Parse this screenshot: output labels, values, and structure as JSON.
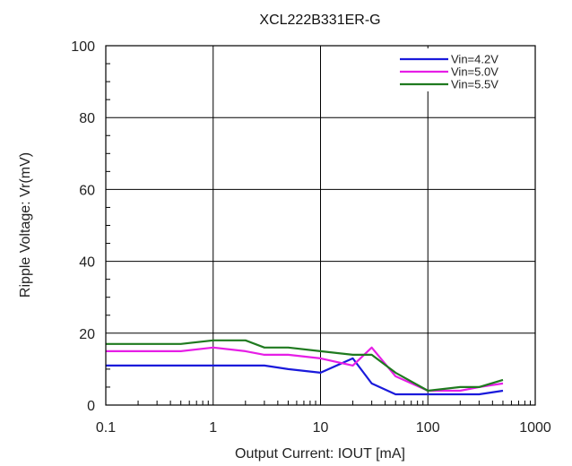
{
  "chart_data": {
    "type": "line",
    "title": "XCL222B331ER-G",
    "xlabel": "Output  Current:  IOUT [mA]",
    "ylabel": "Ripple  Voltage: Vr(mV)",
    "xscale": "log",
    "xlim": [
      0.1,
      1000
    ],
    "ylim": [
      0,
      100
    ],
    "grid": true,
    "legend_position": "top-right",
    "x_ticks": [
      {
        "value": 0.1,
        "label": "0.1"
      },
      {
        "value": 1,
        "label": "1"
      },
      {
        "value": 10,
        "label": "10"
      },
      {
        "value": 100,
        "label": "100"
      },
      {
        "value": 1000,
        "label": "1000"
      }
    ],
    "y_ticks": [
      {
        "value": 0,
        "label": "0"
      },
      {
        "value": 20,
        "label": "20"
      },
      {
        "value": 40,
        "label": "40"
      },
      {
        "value": 60,
        "label": "60"
      },
      {
        "value": 80,
        "label": "80"
      },
      {
        "value": 100,
        "label": "100"
      }
    ],
    "series": [
      {
        "name": "Vin=4.2V",
        "color": "#1a1adb",
        "x": [
          0.1,
          0.5,
          1,
          2,
          3,
          5,
          10,
          20,
          30,
          50,
          100,
          200,
          300,
          500
        ],
        "y": [
          11,
          11,
          11,
          11,
          11,
          10,
          9,
          13,
          6,
          3,
          3,
          3,
          3,
          4
        ]
      },
      {
        "name": "Vin=5.0V",
        "color": "#e61ee6",
        "x": [
          0.1,
          0.5,
          1,
          2,
          3,
          5,
          10,
          20,
          30,
          50,
          100,
          200,
          300,
          500
        ],
        "y": [
          15,
          15,
          16,
          15,
          14,
          14,
          13,
          11,
          16,
          8,
          4,
          4,
          5,
          6
        ]
      },
      {
        "name": "Vin=5.5V",
        "color": "#1f7a1f",
        "x": [
          0.1,
          0.5,
          1,
          2,
          3,
          5,
          10,
          20,
          30,
          50,
          100,
          200,
          300,
          500
        ],
        "y": [
          17,
          17,
          18,
          18,
          16,
          16,
          15,
          14,
          14,
          9,
          4,
          5,
          5,
          7
        ]
      }
    ]
  }
}
